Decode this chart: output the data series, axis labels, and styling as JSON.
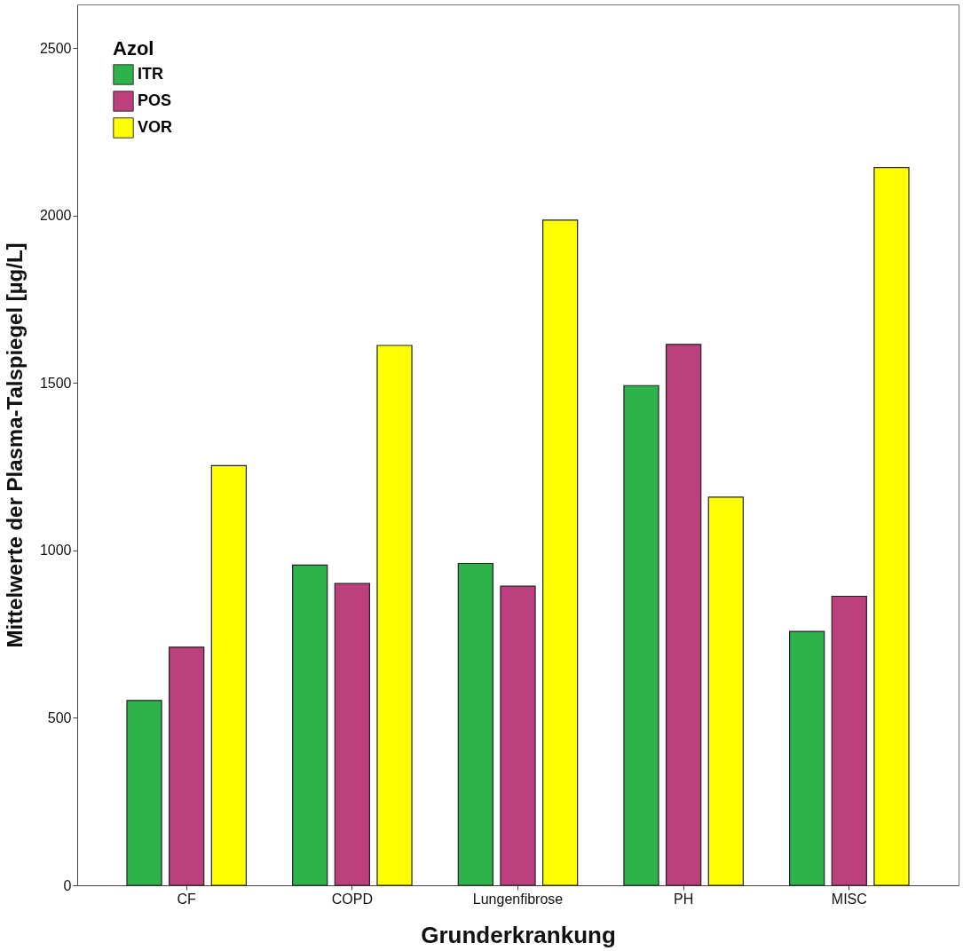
{
  "chart_data": {
    "type": "bar",
    "xlabel": "Grunderkrankung",
    "ylabel": "Mittelwerte der  Plasma-Talspiegel [µg/L]",
    "legend_title": "Azol",
    "legend": "top left",
    "grid": false,
    "categories": [
      "CF",
      "COPD",
      "Lungenfibrose",
      "PH",
      "MISC"
    ],
    "series": [
      {
        "name": "ITR",
        "color": "#2db34a",
        "values": [
          552,
          956,
          961,
          1492,
          758
        ]
      },
      {
        "name": "POS",
        "color": "#bc3f7e",
        "values": [
          711,
          901,
          893,
          1615,
          863
        ]
      },
      {
        "name": "VOR",
        "color": "#ffff00",
        "values": [
          1253,
          1612,
          1986,
          1159,
          2143
        ]
      }
    ],
    "ylim": [
      0,
      2630
    ],
    "yticks": [
      0,
      500,
      1000,
      1500,
      2000,
      2500
    ]
  }
}
